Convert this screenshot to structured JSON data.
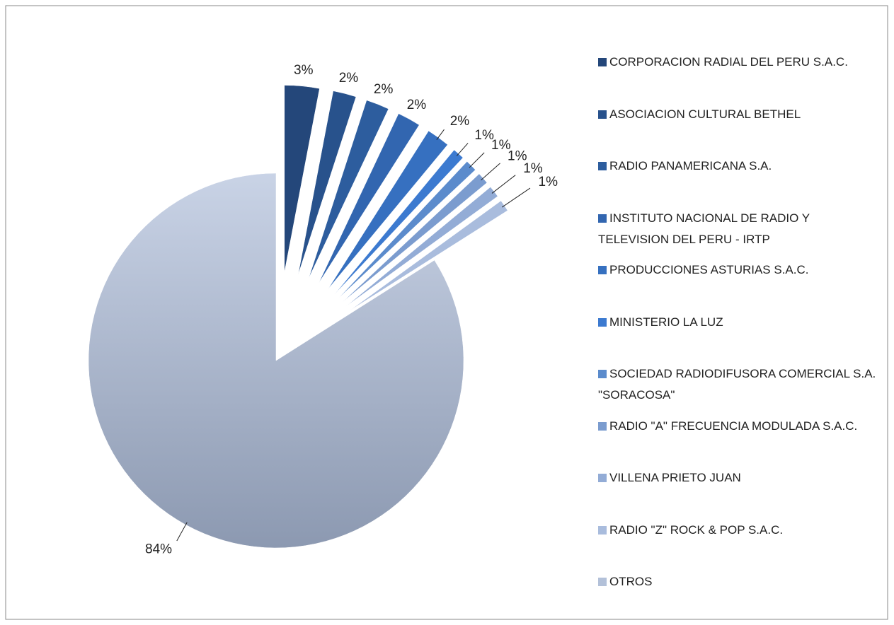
{
  "chart_data": {
    "type": "pie",
    "exploded": true,
    "categories": [
      "CORPORACION RADIAL DEL PERU S.A.C.",
      "ASOCIACION CULTURAL BETHEL",
      "RADIO PANAMERICANA S.A.",
      "INSTITUTO NACIONAL DE RADIO Y TELEVISION DEL PERU - IRTP",
      "PRODUCCIONES ASTURIAS S.A.C.",
      "MINISTERIO LA LUZ",
      "SOCIEDAD RADIODIFUSORA COMERCIAL S.A. \"SORACOSA\"",
      "RADIO \"A\" FRECUENCIA MODULADA S.A.C.",
      "VILLENA PRIETO JUAN",
      "RADIO \"Z\" ROCK & POP S.A.C.",
      "OTROS"
    ],
    "values": [
      3,
      2,
      2,
      2,
      2,
      1,
      1,
      1,
      1,
      1,
      84
    ],
    "value_labels": [
      "3%",
      "2%",
      "2%",
      "2%",
      "2%",
      "1%",
      "1%",
      "1%",
      "1%",
      "1%",
      "84%"
    ],
    "colors": [
      "#24477a",
      "#28528c",
      "#2d5d9e",
      "#3266b0",
      "#3670c0",
      "#3c7ad0",
      "#5b8bcc",
      "#7b9ccf",
      "#93acd6",
      "#a9bcdd",
      "#b3c1d9"
    ],
    "legend": "right"
  }
}
